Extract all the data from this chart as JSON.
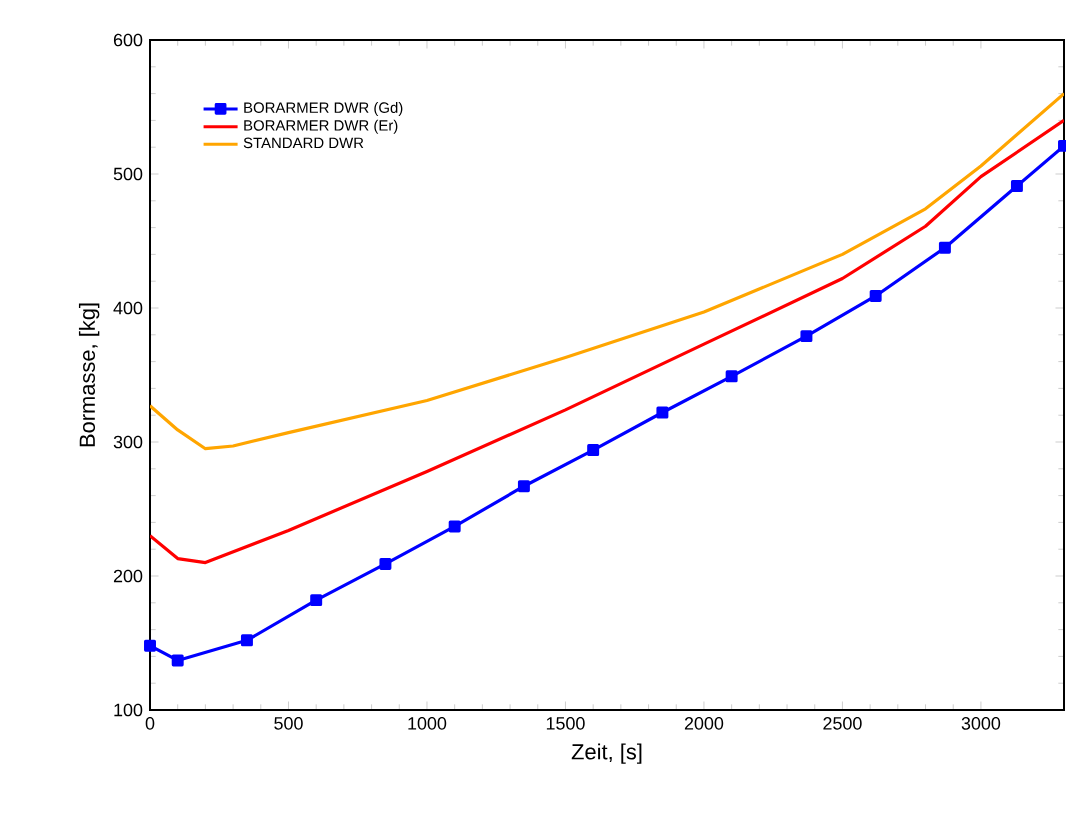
{
  "chart_data": {
    "type": "line",
    "xlabel": "Zeit, [s]",
    "ylabel": "Bormasse, [kg]",
    "xlim": [
      0,
      3300
    ],
    "ylim": [
      100,
      600
    ],
    "xticks": [
      0,
      500,
      1000,
      1500,
      2000,
      2500,
      3000
    ],
    "yticks": [
      100,
      200,
      300,
      400,
      500,
      600
    ],
    "grid": false,
    "legend": "top left",
    "line_style": "solid",
    "series": [
      {
        "name": "BORARMER  DWR (Gd)",
        "color": "#0000ff",
        "marker": "square",
        "x": [
          0,
          100,
          350,
          600,
          850,
          1100,
          1350,
          1600,
          1850,
          2100,
          2370,
          2620,
          2870,
          3130,
          3300
        ],
        "values": [
          148,
          137,
          152,
          182,
          209,
          237,
          267,
          294,
          322,
          349,
          379,
          409,
          445,
          491,
          521
        ]
      },
      {
        "name": "BORARMER  DWR (Er)",
        "color": "#ff0000",
        "marker": "none",
        "x": [
          0,
          100,
          200,
          500,
          1000,
          1500,
          2000,
          2500,
          2800,
          3000,
          3300
        ],
        "values": [
          230,
          213,
          210,
          234,
          278,
          324,
          373,
          422,
          461,
          498,
          540
        ]
      },
      {
        "name": "STANDARD   DWR",
        "color": "#ffa500",
        "marker": "none",
        "x": [
          0,
          100,
          200,
          300,
          500,
          1000,
          1500,
          2000,
          2500,
          2800,
          3000,
          3300
        ],
        "values": [
          327,
          309,
          295,
          297,
          307,
          331,
          363,
          397,
          440,
          474,
          506,
          560
        ]
      }
    ]
  }
}
